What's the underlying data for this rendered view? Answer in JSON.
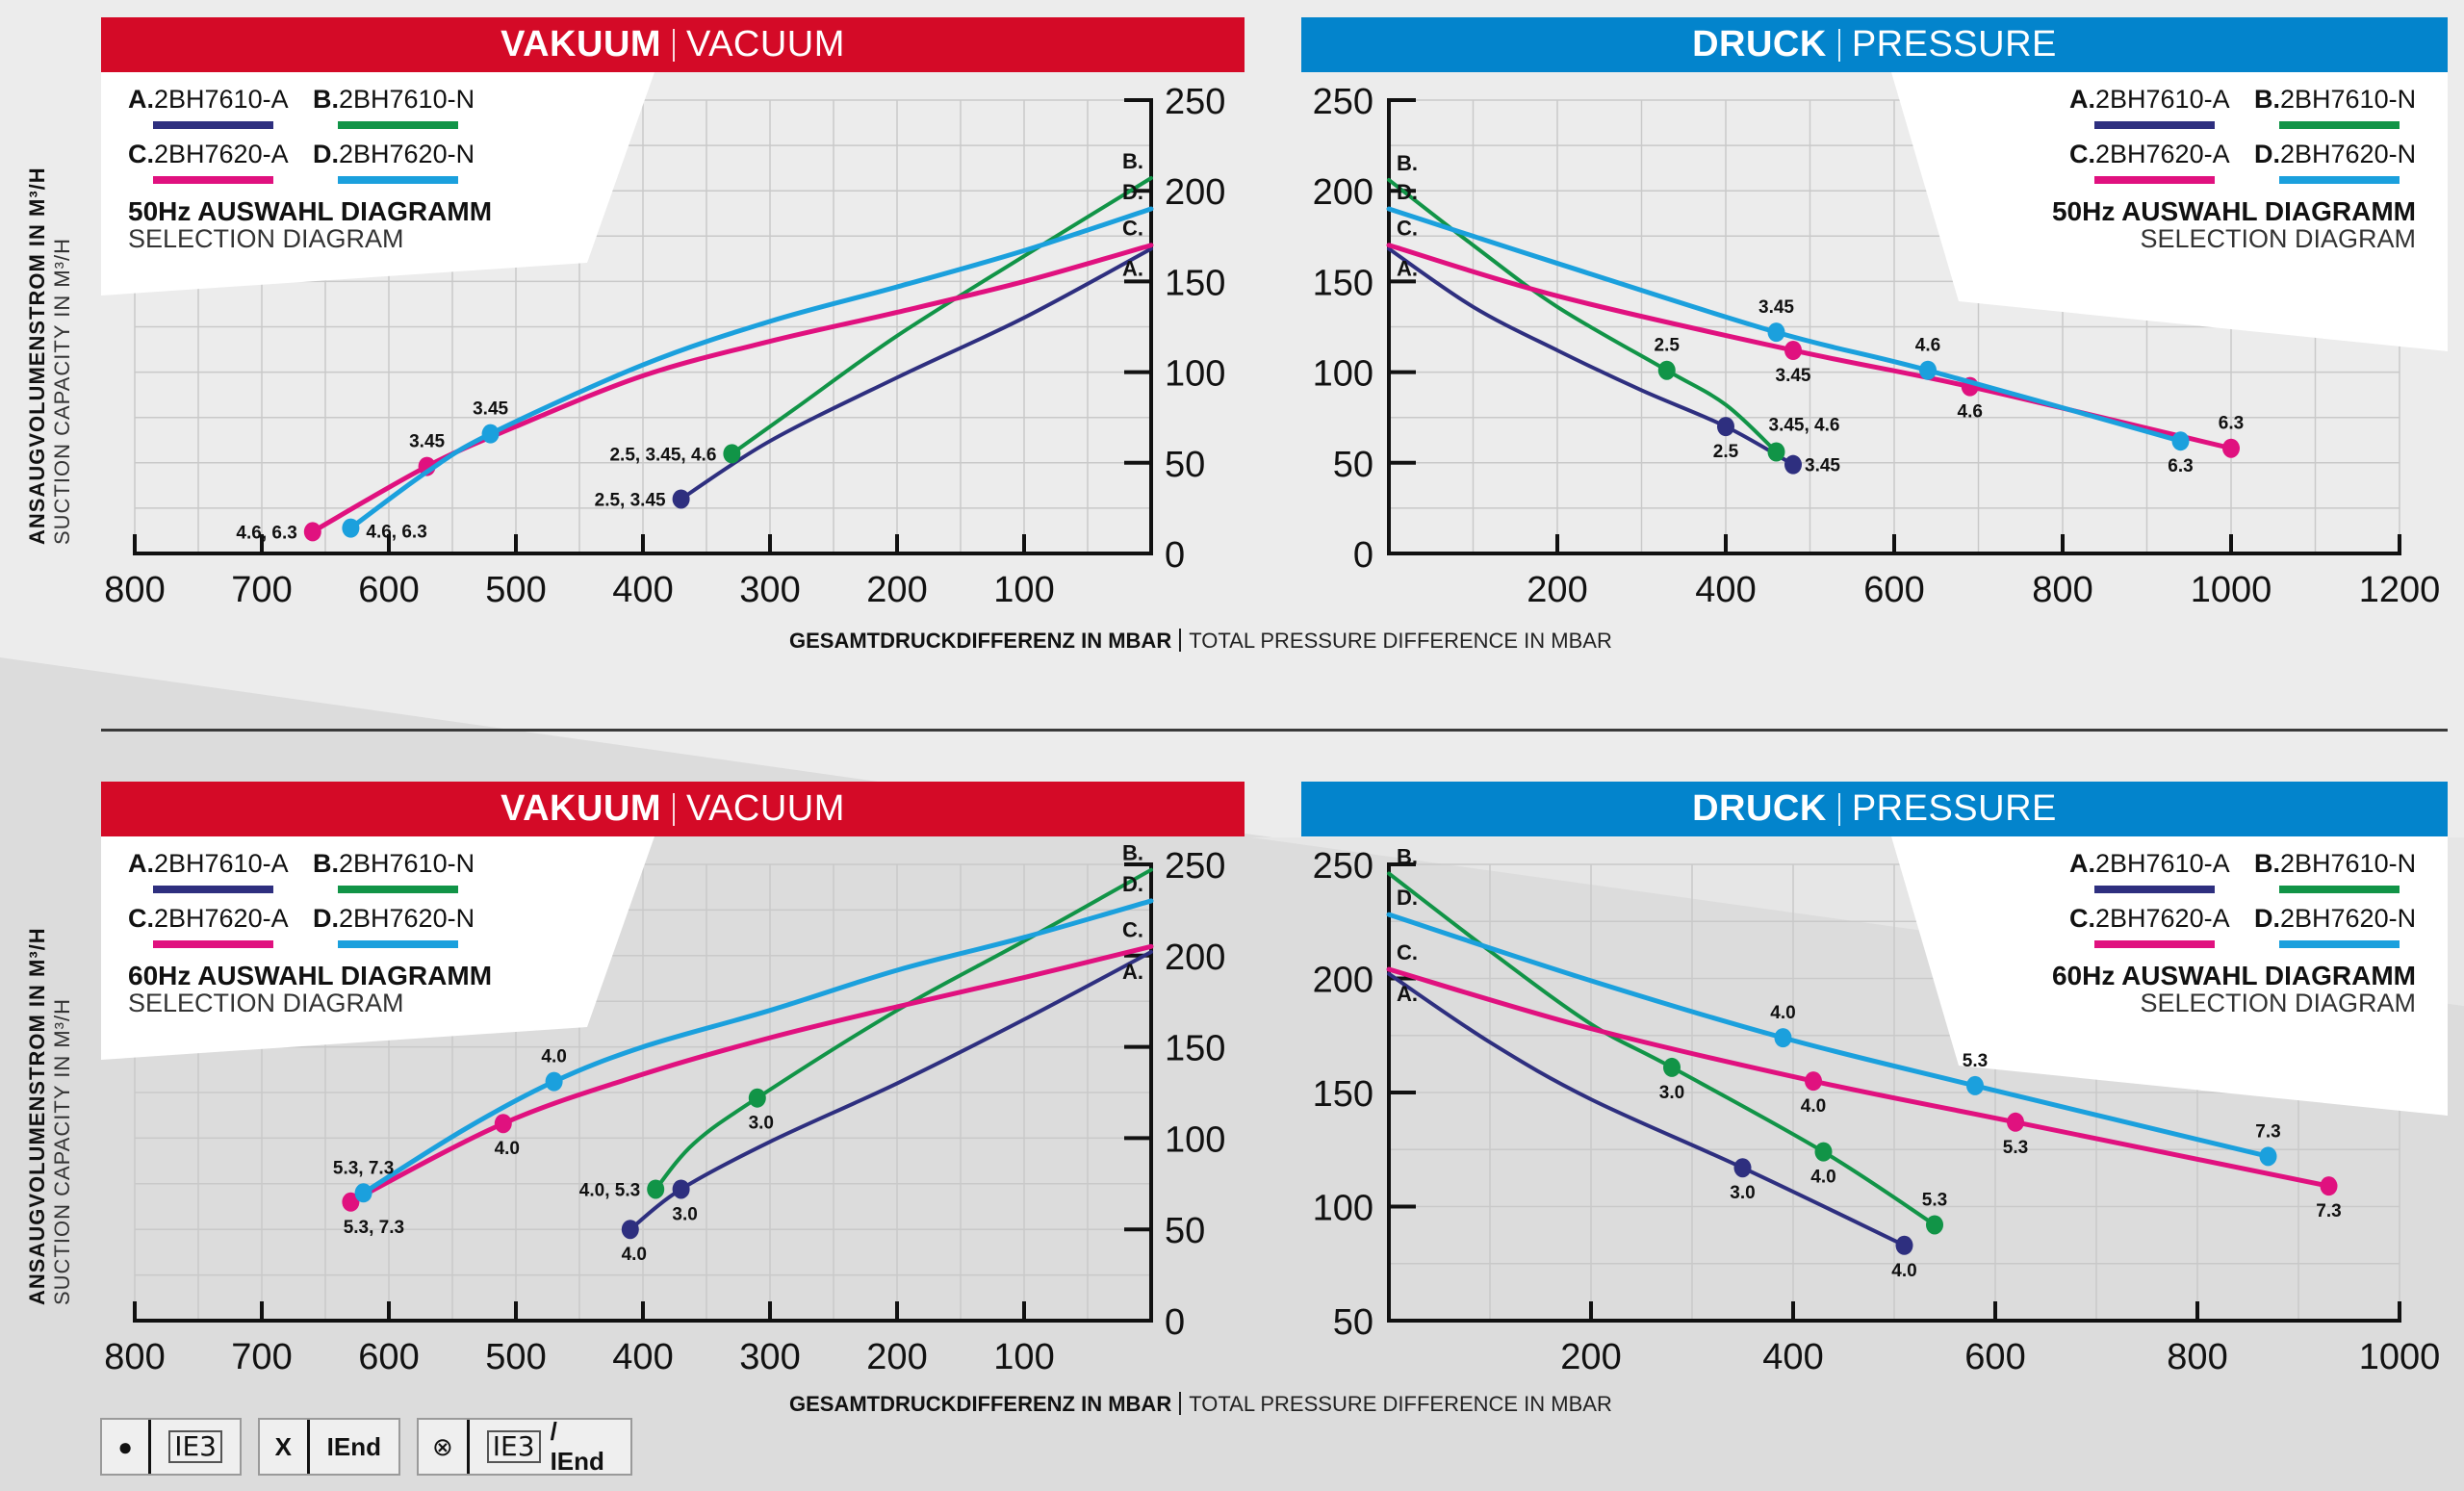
{
  "colors": {
    "vacuum_header": "#d40a27",
    "pressure_header": "#0384cc",
    "A": "#2e2f7f",
    "B": "#119447",
    "C": "#e0117f",
    "D": "#1ba0dd"
  },
  "axis_titles": {
    "y_de": "ANSAUGVOLUMENSTROM IN M³/H",
    "y_en": "SUCTION CAPACITY IN M³/H",
    "x_de": "GESAMTDRUCKDIFFERENZ IN MBAR",
    "x_en": "TOTAL PRESSURE DIFFERENCE IN MBAR"
  },
  "headers": {
    "vacuum_de": "VAKUUM",
    "vacuum_en": "VACUUM",
    "pressure_de": "DRUCK",
    "pressure_en": "PRESSURE"
  },
  "legend_models": [
    {
      "key": "A",
      "letter": "A.",
      "model": "2BH7610-A"
    },
    {
      "key": "B",
      "letter": "B.",
      "model": "2BH7610-N"
    },
    {
      "key": "C",
      "letter": "C.",
      "model": "2BH7620-A"
    },
    {
      "key": "D",
      "letter": "D.",
      "model": "2BH7620-N"
    }
  ],
  "footer_legend": [
    {
      "symbol": "●",
      "label": "IE3",
      "boxed": true
    },
    {
      "symbol": "X",
      "label": "IEnd",
      "boxed": false
    },
    {
      "symbol": "⊗",
      "label": "IE3",
      "label2": " / IEnd",
      "boxed": true
    }
  ],
  "chart_data": [
    {
      "id": "vac50",
      "type": "line",
      "title": "50Hz AUSWAHL DIAGRAMM",
      "subtitle": "SELECTION DIAGRAM",
      "section": "VAKUUM | VACUUM",
      "xlabel": "GESAMTDRUCKDIFFERENZ IN MBAR | TOTAL PRESSURE DIFFERENCE IN MBAR",
      "ylabel": "ANSAUGVOLUMENSTROM IN M³/H | SUCTION CAPACITY IN M³/H",
      "xlim": [
        800,
        0
      ],
      "ylim": [
        0,
        250
      ],
      "xticks": [
        800,
        700,
        600,
        500,
        400,
        300,
        200,
        100
      ],
      "yticks": [
        0,
        50,
        100,
        150,
        200,
        250
      ],
      "grid": true,
      "series": [
        {
          "name": "A. 2BH7610-A",
          "key": "A",
          "end_label": "A.",
          "points": [
            [
              0,
              168
            ],
            [
              100,
              130
            ],
            [
              200,
              97
            ],
            [
              300,
              62
            ],
            [
              370,
              30
            ]
          ],
          "markers": [
            {
              "x": 370,
              "y": 30,
              "label": "2.5, 3.45"
            }
          ]
        },
        {
          "name": "B. 2BH7610-N",
          "key": "B",
          "end_label": "B.",
          "points": [
            [
              0,
              207
            ],
            [
              100,
              164
            ],
            [
              200,
              120
            ],
            [
              280,
              80
            ],
            [
              330,
              55
            ]
          ],
          "markers": [
            {
              "x": 330,
              "y": 55,
              "label": "2.5, 3.45, 4.6"
            }
          ]
        },
        {
          "name": "C. 2BH7620-A",
          "key": "C",
          "end_label": "C.",
          "points": [
            [
              0,
              170
            ],
            [
              100,
              150
            ],
            [
              200,
              133
            ],
            [
              300,
              117
            ],
            [
              400,
              98
            ],
            [
              500,
              70
            ],
            [
              570,
              48
            ],
            [
              660,
              12
            ]
          ],
          "markers": [
            {
              "x": 570,
              "y": 48,
              "label": "3.45"
            },
            {
              "x": 660,
              "y": 12,
              "label": "4.6, 6.3"
            }
          ]
        },
        {
          "name": "D. 2BH7620-N",
          "key": "D",
          "end_label": "D.",
          "points": [
            [
              0,
              190
            ],
            [
              100,
              167
            ],
            [
              200,
              147
            ],
            [
              300,
              128
            ],
            [
              400,
              104
            ],
            [
              520,
              66
            ],
            [
              570,
              45
            ],
            [
              630,
              14
            ]
          ],
          "markers": [
            {
              "x": 520,
              "y": 66,
              "label": "3.45"
            },
            {
              "x": 630,
              "y": 14,
              "label": "4.6, 6.3"
            }
          ]
        }
      ]
    },
    {
      "id": "pre50",
      "type": "line",
      "title": "50Hz AUSWAHL DIAGRAMM",
      "subtitle": "SELECTION DIAGRAM",
      "section": "DRUCK | PRESSURE",
      "xlabel": "GESAMTDRUCKDIFFERENZ IN MBAR | TOTAL PRESSURE DIFFERENCE IN MBAR",
      "ylabel": "ANSAUGVOLUMENSTROM IN M³/H | SUCTION CAPACITY IN M³/H",
      "xlim": [
        0,
        1200
      ],
      "ylim": [
        0,
        250
      ],
      "xticks": [
        200,
        400,
        600,
        800,
        1000,
        1200
      ],
      "yticks": [
        0,
        50,
        100,
        150,
        200,
        250
      ],
      "grid": true,
      "series": [
        {
          "name": "A. 2BH7610-A",
          "key": "A",
          "end_label": "A.",
          "points": [
            [
              0,
              168
            ],
            [
              100,
              136
            ],
            [
              200,
              112
            ],
            [
              300,
              90
            ],
            [
              400,
              70
            ],
            [
              480,
              49
            ]
          ],
          "markers": [
            {
              "x": 400,
              "y": 70,
              "label": "2.5"
            },
            {
              "x": 480,
              "y": 49,
              "label": "3.45"
            }
          ]
        },
        {
          "name": "B. 2BH7610-N",
          "key": "B",
          "end_label": "B.",
          "points": [
            [
              0,
              206
            ],
            [
              100,
              170
            ],
            [
              200,
              136
            ],
            [
              330,
              101
            ],
            [
              400,
              82
            ],
            [
              460,
              56
            ]
          ],
          "markers": [
            {
              "x": 330,
              "y": 101,
              "label": "2.5"
            },
            {
              "x": 460,
              "y": 56,
              "label": "3.45, 4.6"
            }
          ]
        },
        {
          "name": "C. 2BH7620-A",
          "key": "C",
          "end_label": "C.",
          "points": [
            [
              0,
              170
            ],
            [
              200,
              142
            ],
            [
              480,
              112
            ],
            [
              690,
              92
            ],
            [
              1000,
              58
            ]
          ],
          "markers": [
            {
              "x": 480,
              "y": 112,
              "label": "3.45"
            },
            {
              "x": 690,
              "y": 92,
              "label": "4.6"
            },
            {
              "x": 1000,
              "y": 58,
              "label": "6.3"
            }
          ]
        },
        {
          "name": "D. 2BH7620-N",
          "key": "D",
          "end_label": "D.",
          "points": [
            [
              0,
              190
            ],
            [
              200,
              160
            ],
            [
              460,
              122
            ],
            [
              640,
              101
            ],
            [
              940,
              62
            ]
          ],
          "markers": [
            {
              "x": 460,
              "y": 122,
              "label": "3.45"
            },
            {
              "x": 640,
              "y": 101,
              "label": "4.6"
            },
            {
              "x": 940,
              "y": 62,
              "label": "6.3"
            }
          ]
        }
      ]
    },
    {
      "id": "vac60",
      "type": "line",
      "title": "60Hz AUSWAHL DIAGRAMM",
      "subtitle": "SELECTION DIAGRAM",
      "section": "VAKUUM | VACUUM",
      "xlabel": "GESAMTDRUCKDIFFERENZ IN MBAR | TOTAL PRESSURE DIFFERENCE IN MBAR",
      "ylabel": "ANSAUGVOLUMENSTROM IN M³/H | SUCTION CAPACITY IN M³/H",
      "xlim": [
        800,
        0
      ],
      "ylim": [
        0,
        250
      ],
      "xticks": [
        800,
        700,
        600,
        500,
        400,
        300,
        200,
        100
      ],
      "yticks": [
        0,
        50,
        100,
        150,
        200,
        250
      ],
      "grid": true,
      "series": [
        {
          "name": "A. 2BH7610-A",
          "key": "A",
          "end_label": "A.",
          "points": [
            [
              0,
              202
            ],
            [
              100,
              165
            ],
            [
              200,
              130
            ],
            [
              300,
              98
            ],
            [
              370,
              72
            ],
            [
              410,
              50
            ]
          ],
          "markers": [
            {
              "x": 370,
              "y": 72,
              "label": "3.0"
            },
            {
              "x": 410,
              "y": 50,
              "label": "4.0"
            }
          ]
        },
        {
          "name": "B. 2BH7610-N",
          "key": "B",
          "end_label": "B.",
          "points": [
            [
              0,
              247
            ],
            [
              100,
              208
            ],
            [
              200,
              170
            ],
            [
              310,
              122
            ],
            [
              360,
              97
            ],
            [
              390,
              72
            ]
          ],
          "markers": [
            {
              "x": 310,
              "y": 122,
              "label": "3.0"
            },
            {
              "x": 390,
              "y": 72,
              "label": "4.0, 5.3"
            }
          ]
        },
        {
          "name": "C. 2BH7620-A",
          "key": "C",
          "end_label": "C.",
          "points": [
            [
              0,
              205
            ],
            [
              100,
              188
            ],
            [
              200,
              172
            ],
            [
              300,
              155
            ],
            [
              400,
              135
            ],
            [
              510,
              108
            ],
            [
              630,
              65
            ]
          ],
          "markers": [
            {
              "x": 510,
              "y": 108,
              "label": "4.0"
            },
            {
              "x": 630,
              "y": 65,
              "label": "5.3, 7.3"
            }
          ]
        },
        {
          "name": "D. 2BH7620-N",
          "key": "D",
          "end_label": "D.",
          "points": [
            [
              0,
              230
            ],
            [
              100,
              210
            ],
            [
              200,
              192
            ],
            [
              300,
              170
            ],
            [
              400,
              150
            ],
            [
              470,
              131
            ],
            [
              540,
              105
            ],
            [
              620,
              70
            ]
          ],
          "markers": [
            {
              "x": 470,
              "y": 131,
              "label": "4.0"
            },
            {
              "x": 620,
              "y": 70,
              "label": "5.3, 7.3"
            }
          ]
        }
      ]
    },
    {
      "id": "pre60",
      "type": "line",
      "title": "60Hz AUSWAHL DIAGRAMM",
      "subtitle": "SELECTION DIAGRAM",
      "section": "DRUCK | PRESSURE",
      "xlabel": "GESAMTDRUCKDIFFERENZ IN MBAR | TOTAL PRESSURE DIFFERENCE IN MBAR",
      "ylabel": "ANSAUGVOLUMENSTROM IN M³/H | SUCTION CAPACITY IN M³/H",
      "xlim": [
        0,
        1000
      ],
      "ylim": [
        50,
        250
      ],
      "xticks": [
        200,
        400,
        600,
        800,
        1000
      ],
      "yticks": [
        50,
        100,
        150,
        200,
        250
      ],
      "grid": true,
      "series": [
        {
          "name": "A. 2BH7610-A",
          "key": "A",
          "end_label": "A.",
          "points": [
            [
              0,
              202
            ],
            [
              100,
              172
            ],
            [
              200,
              147
            ],
            [
              350,
              117
            ],
            [
              510,
              83
            ]
          ],
          "markers": [
            {
              "x": 350,
              "y": 117,
              "label": "3.0"
            },
            {
              "x": 510,
              "y": 83,
              "label": "4.0"
            }
          ]
        },
        {
          "name": "B. 2BH7610-N",
          "key": "B",
          "end_label": "B.",
          "points": [
            [
              0,
              246
            ],
            [
              100,
              212
            ],
            [
              200,
              180
            ],
            [
              280,
              161
            ],
            [
              430,
              124
            ],
            [
              540,
              92
            ]
          ],
          "markers": [
            {
              "x": 280,
              "y": 161,
              "label": "3.0"
            },
            {
              "x": 430,
              "y": 124,
              "label": "4.0"
            },
            {
              "x": 540,
              "y": 92,
              "label": "5.3"
            }
          ]
        },
        {
          "name": "C. 2BH7620-A",
          "key": "C",
          "end_label": "C.",
          "points": [
            [
              0,
              204
            ],
            [
              200,
              178
            ],
            [
              420,
              155
            ],
            [
              620,
              137
            ],
            [
              930,
              109
            ]
          ],
          "markers": [
            {
              "x": 420,
              "y": 155,
              "label": "4.0"
            },
            {
              "x": 620,
              "y": 137,
              "label": "5.3"
            },
            {
              "x": 930,
              "y": 109,
              "label": "7.3"
            }
          ]
        },
        {
          "name": "D. 2BH7620-N",
          "key": "D",
          "end_label": "D.",
          "points": [
            [
              0,
              228
            ],
            [
              200,
              199
            ],
            [
              390,
              174
            ],
            [
              580,
              153
            ],
            [
              870,
              122
            ]
          ],
          "markers": [
            {
              "x": 390,
              "y": 174,
              "label": "4.0"
            },
            {
              "x": 580,
              "y": 153,
              "label": "5.3"
            },
            {
              "x": 870,
              "y": 122,
              "label": "7.3"
            }
          ]
        }
      ]
    }
  ]
}
